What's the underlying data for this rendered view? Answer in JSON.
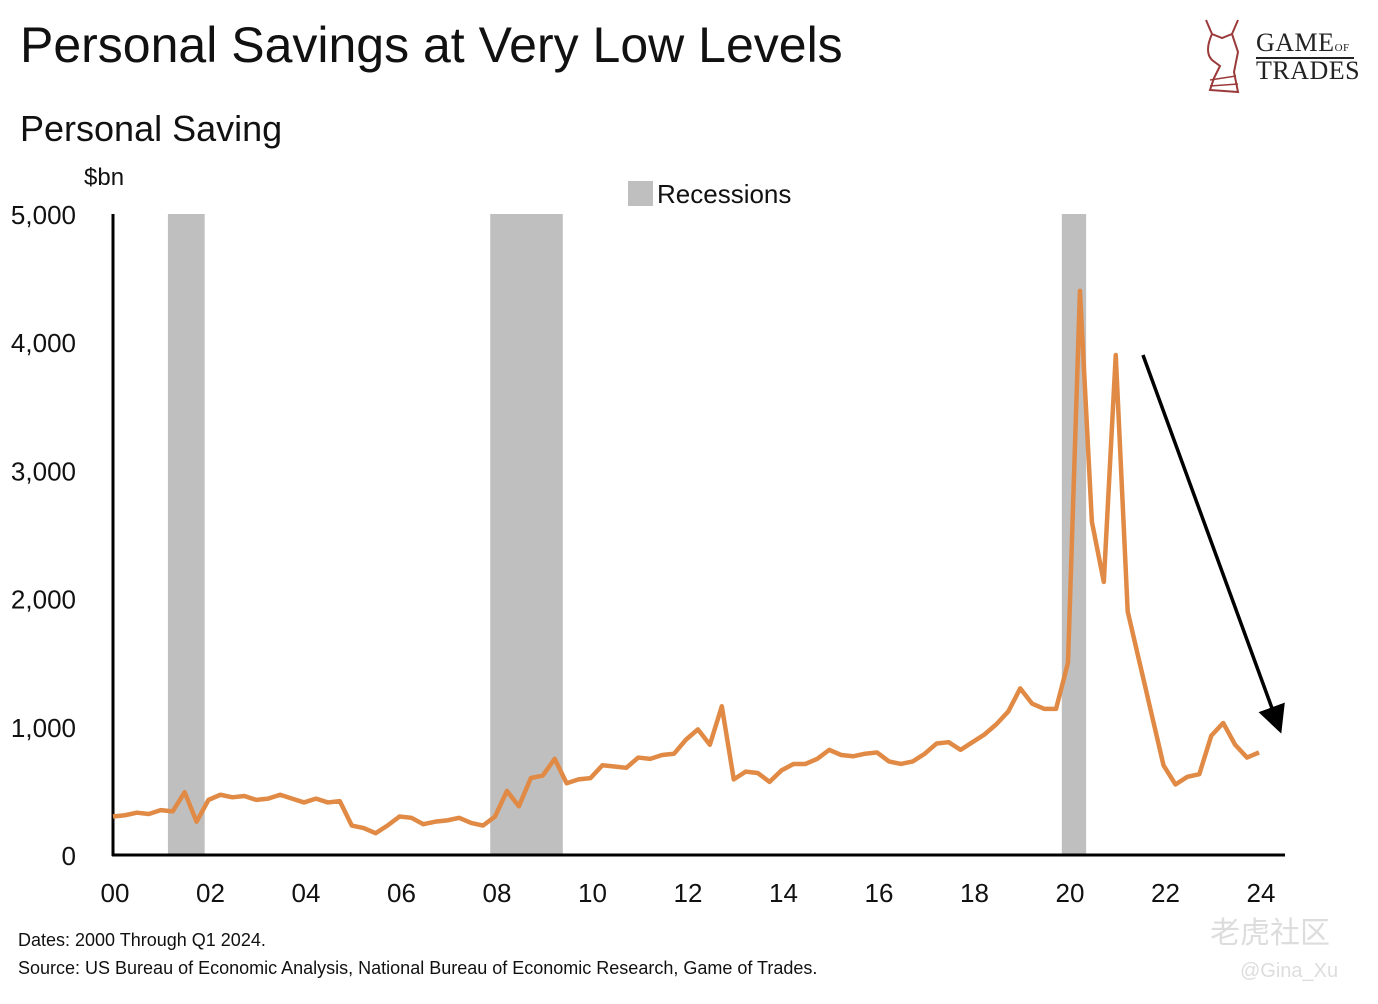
{
  "header": {
    "title": "Personal Savings at Very Low Levels",
    "subtitle": "Personal Saving"
  },
  "logo": {
    "line1": "GAME",
    "of": "OF",
    "line2": "TRADES"
  },
  "footer": {
    "dates": "Dates: 2000 Through Q1 2024.",
    "source": "Source: US Bureau of Economic Analysis, National Bureau of Economic Research, Game of Trades."
  },
  "watermark": {
    "brand": "老虎社区",
    "user": "@Gina_Xu"
  },
  "chart_data": {
    "type": "line",
    "title": "Personal Saving",
    "ylabel": "$bn",
    "xlabel": "",
    "xlim": [
      2000,
      2024.5
    ],
    "ylim": [
      0,
      5000
    ],
    "yticks": [
      0,
      1000,
      2000,
      3000,
      4000,
      5000
    ],
    "ytick_labels": [
      "0",
      "1,000",
      "2,000",
      "3,000",
      "4,000",
      "5,000"
    ],
    "xticks": [
      2000,
      2002,
      2004,
      2006,
      2008,
      2010,
      2012,
      2014,
      2016,
      2018,
      2020,
      2022,
      2024
    ],
    "xtick_labels": [
      "00",
      "02",
      "04",
      "06",
      "08",
      "10",
      "12",
      "14",
      "16",
      "18",
      "20",
      "22",
      "24"
    ],
    "legend": {
      "label": "Recessions",
      "placement": "top-center"
    },
    "recessions": [
      [
        2001.15,
        2001.92
      ],
      [
        2007.9,
        2009.42
      ],
      [
        2019.87,
        2020.38
      ]
    ],
    "series": [
      {
        "name": "Personal Saving",
        "color": "#E08A45",
        "start": 2000,
        "step": 0.25,
        "values": [
          300,
          310,
          330,
          320,
          350,
          340,
          490,
          260,
          430,
          470,
          450,
          460,
          430,
          440,
          470,
          440,
          410,
          440,
          410,
          420,
          230,
          210,
          170,
          230,
          300,
          290,
          240,
          260,
          270,
          290,
          250,
          230,
          300,
          500,
          380,
          600,
          620,
          750,
          560,
          590,
          600,
          700,
          690,
          680,
          760,
          750,
          780,
          790,
          900,
          980,
          860,
          1160,
          590,
          650,
          640,
          570,
          660,
          710,
          710,
          750,
          820,
          780,
          770,
          790,
          800,
          730,
          710,
          730,
          790,
          870,
          880,
          820,
          880,
          940,
          1020,
          1120,
          1300,
          1180,
          1140,
          1140,
          1500,
          4400,
          2600,
          2130,
          3900,
          1900,
          1500,
          1100,
          700,
          550,
          610,
          630,
          930,
          1030,
          860,
          760,
          800
        ]
      }
    ],
    "annotation_arrow": {
      "from": [
        2021.57,
        3900
      ],
      "to": [
        2024.5,
        920
      ]
    },
    "recession_color": "#BFBFBF"
  }
}
